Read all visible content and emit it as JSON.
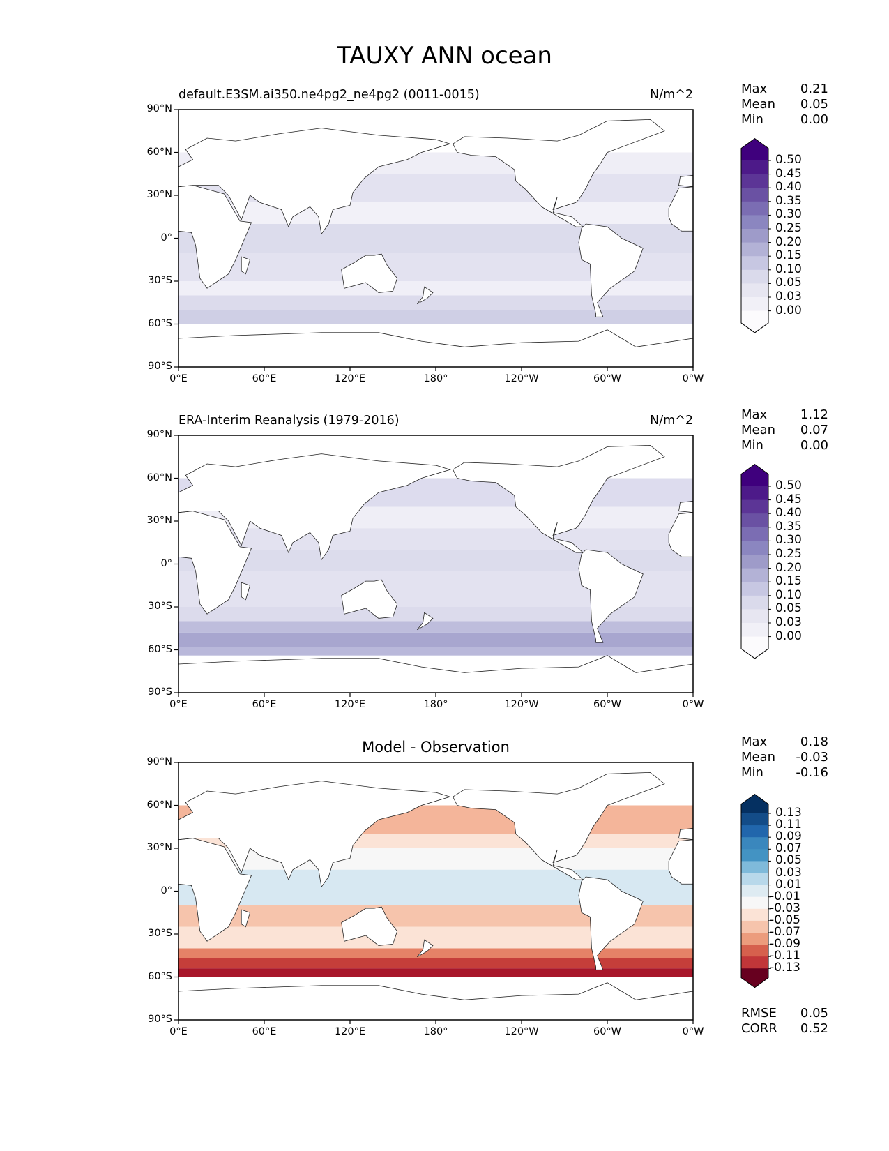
{
  "figure_title": "TAUXY ANN ocean",
  "chart_data": [
    {
      "type": "heatmap",
      "title": "default.E3SM.ai350.ne4pg2_ne4pg2 (0011-0015)",
      "units": "N/m^2",
      "stats": {
        "max": "0.21",
        "mean": "0.05",
        "min": "0.00"
      },
      "colorbar_levels": [
        "0.50",
        "0.45",
        "0.40",
        "0.35",
        "0.30",
        "0.25",
        "0.20",
        "0.15",
        "0.10",
        "0.05",
        "0.03",
        "0.00"
      ],
      "colormap": [
        "#3f007d",
        "#4d1a89",
        "#5c3596",
        "#6a51a3",
        "#7b6db3",
        "#8b86c0",
        "#9e9bc9",
        "#b3b2d6",
        "#c7c7e2",
        "#dadaeb",
        "#e7e6f1",
        "#f1f0f7",
        "#fcfbfd"
      ],
      "xticks": [
        "0°E",
        "60°E",
        "120°E",
        "180°",
        "120°W",
        "60°W",
        "0°W"
      ],
      "yticks": [
        "90°N",
        "60°N",
        "30°N",
        "0°",
        "30°S",
        "60°S",
        "90°S"
      ],
      "xlim": [
        0,
        360
      ],
      "ylim": [
        -90,
        90
      ]
    },
    {
      "type": "heatmap",
      "title": "ERA-Interim Reanalysis (1979-2016)",
      "units": "N/m^2",
      "stats": {
        "max": "1.12",
        "mean": "0.07",
        "min": "0.00"
      },
      "colorbar_levels": [
        "0.50",
        "0.45",
        "0.40",
        "0.35",
        "0.30",
        "0.25",
        "0.20",
        "0.15",
        "0.10",
        "0.05",
        "0.03",
        "0.00"
      ],
      "colormap": [
        "#3f007d",
        "#4d1a89",
        "#5c3596",
        "#6a51a3",
        "#7b6db3",
        "#8b86c0",
        "#9e9bc9",
        "#b3b2d6",
        "#c7c7e2",
        "#dadaeb",
        "#e7e6f1",
        "#f1f0f7",
        "#fcfbfd"
      ],
      "xticks": [
        "0°E",
        "60°E",
        "120°E",
        "180°",
        "120°W",
        "60°W",
        "0°W"
      ],
      "yticks": [
        "90°N",
        "60°N",
        "30°N",
        "0°",
        "30°S",
        "60°S",
        "90°S"
      ],
      "xlim": [
        0,
        360
      ],
      "ylim": [
        -90,
        90
      ]
    },
    {
      "type": "heatmap",
      "title": "Model - Observation",
      "units": "",
      "stats": {
        "max": "0.18",
        "mean": "-0.03",
        "min": "-0.16"
      },
      "metrics": {
        "rmse_label": "RMSE",
        "rmse": "0.05",
        "corr_label": "CORR",
        "corr": "0.52"
      },
      "colorbar_levels": [
        "0.13",
        "0.11",
        "0.09",
        "0.07",
        "0.05",
        "0.03",
        "0.01",
        "-0.01",
        "-0.03",
        "-0.05",
        "-0.07",
        "-0.09",
        "-0.11",
        "-0.13"
      ],
      "colormap": [
        "#053061",
        "#134c88",
        "#2166ac",
        "#3a87bd",
        "#4393c3",
        "#7fbada",
        "#b8d8ea",
        "#deebf2",
        "#f7f7f7",
        "#fbe3d6",
        "#f6c4ac",
        "#ec9c7d",
        "#d6604d",
        "#c13639",
        "#a51429",
        "#67001f"
      ],
      "xticks": [
        "0°E",
        "60°E",
        "120°E",
        "180°",
        "120°W",
        "60°W",
        "0°W"
      ],
      "yticks": [
        "90°N",
        "60°N",
        "30°N",
        "0°",
        "30°S",
        "60°S",
        "90°S"
      ],
      "xlim": [
        0,
        360
      ],
      "ylim": [
        -90,
        90
      ]
    }
  ],
  "stat_labels": {
    "max": "Max",
    "mean": "Mean",
    "min": "Min"
  }
}
